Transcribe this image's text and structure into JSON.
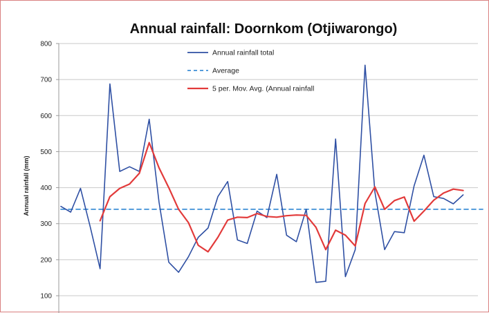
{
  "chart_data": {
    "type": "line",
    "title": "Annual rainfall: Doornkom (Otjiwarongo)",
    "ylabel": "Annual rainfall (mm)",
    "xlabel": "",
    "ylim": [
      100,
      800
    ],
    "yticks": [
      "100",
      "200",
      "300",
      "400",
      "500",
      "600",
      "700",
      "800"
    ],
    "grid": true,
    "legend_position": "top-center",
    "x": [
      1,
      2,
      3,
      4,
      5,
      6,
      7,
      8,
      9,
      10,
      11,
      12,
      13,
      14,
      15,
      16,
      17,
      18,
      19,
      20,
      21,
      22,
      23,
      24,
      25,
      26,
      27,
      28,
      29,
      30,
      31,
      32,
      33,
      34,
      35,
      36,
      37,
      38,
      39,
      40,
      41,
      42,
      43,
      44
    ],
    "series": [
      {
        "name": "Annual rainfall total",
        "color": "#2e4fa3",
        "style": "solid",
        "values": [
          348,
          332,
          398,
          290,
          175,
          688,
          445,
          458,
          445,
          590,
          360,
          193,
          165,
          208,
          262,
          288,
          375,
          417,
          255,
          245,
          335,
          317,
          437,
          268,
          250,
          340,
          137,
          140,
          535,
          153,
          228,
          740,
          388,
          228,
          278,
          275,
          405,
          490,
          375,
          370,
          355,
          380,
          null,
          null
        ]
      },
      {
        "name": "Average",
        "color": "#3d8fd6",
        "style": "dashed",
        "values": [
          340,
          340,
          340,
          340,
          340,
          340,
          340,
          340,
          340,
          340,
          340,
          340,
          340,
          340,
          340,
          340,
          340,
          340,
          340,
          340,
          340,
          340,
          340,
          340,
          340,
          340,
          340,
          340,
          340,
          340,
          340,
          340,
          340,
          340,
          340,
          340,
          340,
          340,
          340,
          340,
          340,
          340,
          340,
          340
        ]
      },
      {
        "name": "5 per. Mov. Avg. (Annual rainfall",
        "color": "#e23a3a",
        "style": "solid",
        "values": [
          null,
          null,
          null,
          null,
          308,
          375,
          398,
          410,
          440,
          525,
          455,
          400,
          340,
          303,
          240,
          222,
          262,
          310,
          318,
          317,
          328,
          320,
          318,
          322,
          324,
          323,
          290,
          228,
          282,
          268,
          238,
          356,
          402,
          340,
          364,
          374,
          307,
          335,
          365,
          385,
          396,
          392,
          null,
          null
        ]
      }
    ]
  }
}
